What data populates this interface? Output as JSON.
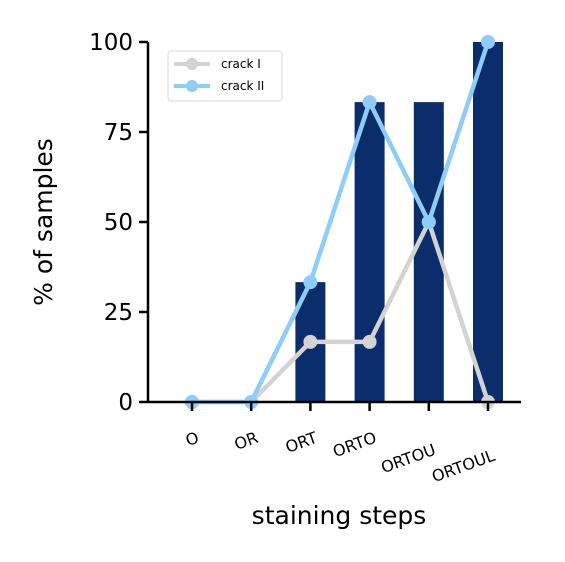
{
  "chart_data": {
    "type": "bar",
    "categories": [
      "O",
      "OR",
      "ORT",
      "ORTO",
      "ORTOU",
      "ORTOUL"
    ],
    "bars": {
      "values": [
        0,
        0,
        33.3,
        83.3,
        83.3,
        100
      ],
      "color": "#0b2d6b"
    },
    "series": [
      {
        "name": "crack I",
        "type": "line",
        "color": "#d3d3d3",
        "values": [
          0,
          0,
          16.7,
          16.7,
          50,
          0
        ]
      },
      {
        "name": "crack II",
        "type": "line",
        "color": "#8ecdf7",
        "values": [
          0,
          0,
          33.3,
          83.3,
          50,
          100
        ]
      }
    ],
    "xlabel": "staining steps",
    "ylabel": "% of samples",
    "ylim": [
      0,
      100
    ],
    "yticks": [
      0,
      25,
      50,
      75,
      100
    ],
    "grid": false,
    "legend_position": "top-left"
  }
}
